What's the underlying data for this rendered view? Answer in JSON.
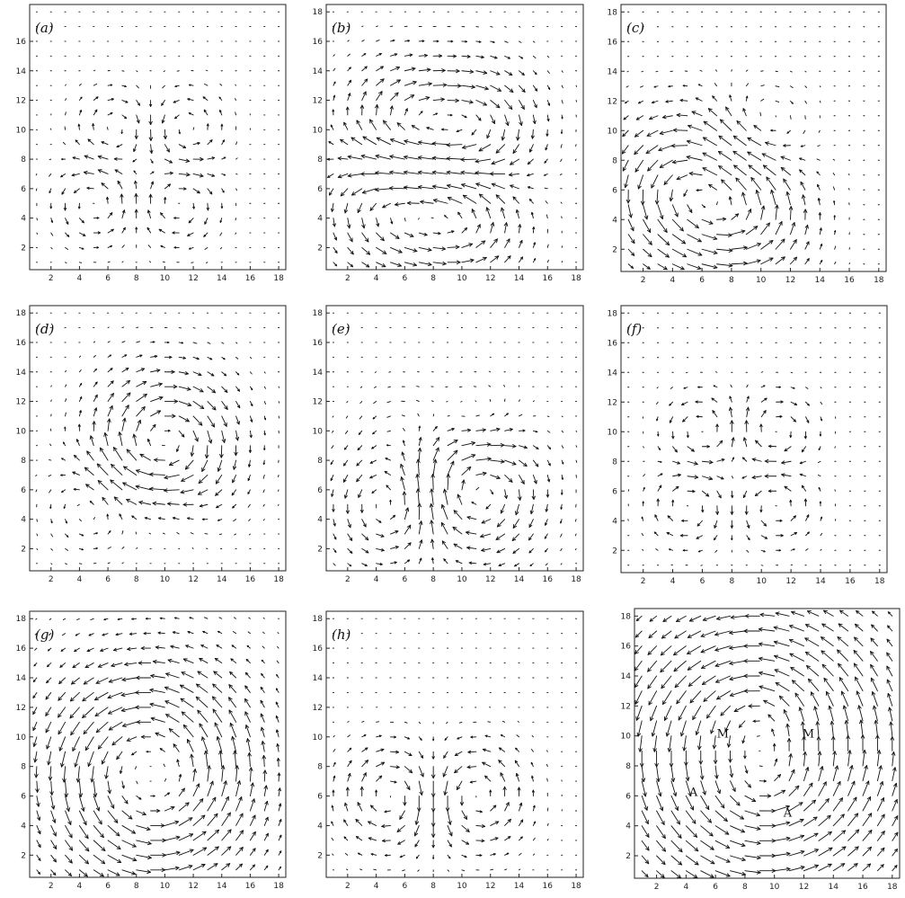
{
  "chart_data": [
    {
      "type": "quiver",
      "panel_label": "(a)",
      "field": "a",
      "x_ticks": [
        2,
        4,
        6,
        8,
        10,
        12,
        14,
        16,
        18
      ],
      "y_ticks": [
        2,
        4,
        6,
        8,
        10,
        12,
        14,
        16
      ],
      "xlim": [
        0.5,
        18.5
      ],
      "ylim": [
        0.5,
        18.5
      ]
    },
    {
      "type": "quiver",
      "panel_label": "(b)",
      "field": "b",
      "x_ticks": [
        2,
        4,
        6,
        8,
        10,
        12,
        14,
        16,
        18
      ],
      "y_ticks": [
        2,
        4,
        6,
        8,
        10,
        12,
        14,
        16,
        18
      ],
      "xlim": [
        0.5,
        18.5
      ],
      "ylim": [
        0.5,
        18.5
      ]
    },
    {
      "type": "quiver",
      "panel_label": "(c)",
      "field": "c",
      "x_ticks": [
        2,
        4,
        6,
        8,
        10,
        12,
        14,
        16,
        18
      ],
      "y_ticks": [
        2,
        4,
        6,
        8,
        10,
        12,
        14,
        16,
        18
      ],
      "xlim": [
        0.5,
        18.5
      ],
      "ylim": [
        0.5,
        18.5
      ]
    },
    {
      "type": "quiver",
      "panel_label": "(d)",
      "field": "d",
      "x_ticks": [
        2,
        4,
        6,
        8,
        10,
        12,
        14,
        16,
        18
      ],
      "y_ticks": [
        2,
        4,
        6,
        8,
        10,
        12,
        14,
        16,
        18
      ],
      "xlim": [
        0.5,
        18.5
      ],
      "ylim": [
        0.5,
        18.5
      ]
    },
    {
      "type": "quiver",
      "panel_label": "(e)",
      "field": "e",
      "x_ticks": [
        2,
        4,
        6,
        8,
        10,
        12,
        14,
        16,
        18
      ],
      "y_ticks": [
        2,
        4,
        6,
        8,
        10,
        12,
        14,
        16,
        18
      ],
      "xlim": [
        0.5,
        18.5
      ],
      "ylim": [
        0.5,
        18.5
      ]
    },
    {
      "type": "quiver",
      "panel_label": "(f)",
      "field": "f",
      "x_ticks": [
        2,
        4,
        6,
        8,
        10,
        12,
        14,
        16,
        18
      ],
      "y_ticks": [
        2,
        4,
        6,
        8,
        10,
        12,
        14,
        16,
        18
      ],
      "xlim": [
        0.5,
        18.5
      ],
      "ylim": [
        0.5,
        18.5
      ]
    },
    {
      "type": "quiver",
      "panel_label": "(g)",
      "field": "g",
      "x_ticks": [
        2,
        4,
        6,
        8,
        10,
        12,
        14,
        16,
        18
      ],
      "y_ticks": [
        2,
        4,
        6,
        8,
        10,
        12,
        14,
        16,
        18
      ],
      "xlim": [
        0.5,
        18.5
      ],
      "ylim": [
        0.5,
        18.5
      ]
    },
    {
      "type": "quiver",
      "panel_label": "(h)",
      "field": "h",
      "x_ticks": [
        2,
        4,
        6,
        8,
        10,
        12,
        14,
        16,
        18
      ],
      "y_ticks": [
        2,
        4,
        6,
        8,
        10,
        12,
        14,
        16,
        18
      ],
      "xlim": [
        0.5,
        18.5
      ],
      "ylim": [
        0.5,
        18.5
      ]
    },
    {
      "type": "quiver",
      "panel_label": "",
      "field": "i",
      "x_ticks": [
        2,
        4,
        6,
        8,
        10,
        12,
        14,
        16,
        18
      ],
      "y_ticks": [
        2,
        4,
        6,
        8,
        10,
        12,
        14,
        16,
        18
      ],
      "xlim": [
        0.5,
        18.5
      ],
      "ylim": [
        0.5,
        18.5
      ],
      "annotations": [
        {
          "text": "M",
          "x": 6.5,
          "y": 10.2
        },
        {
          "text": "M",
          "x": 12.3,
          "y": 10.2
        },
        {
          "text": "A",
          "x": 4.5,
          "y": 6.3
        },
        {
          "text": "A",
          "x": 10.9,
          "y": 4.9
        }
      ]
    }
  ]
}
